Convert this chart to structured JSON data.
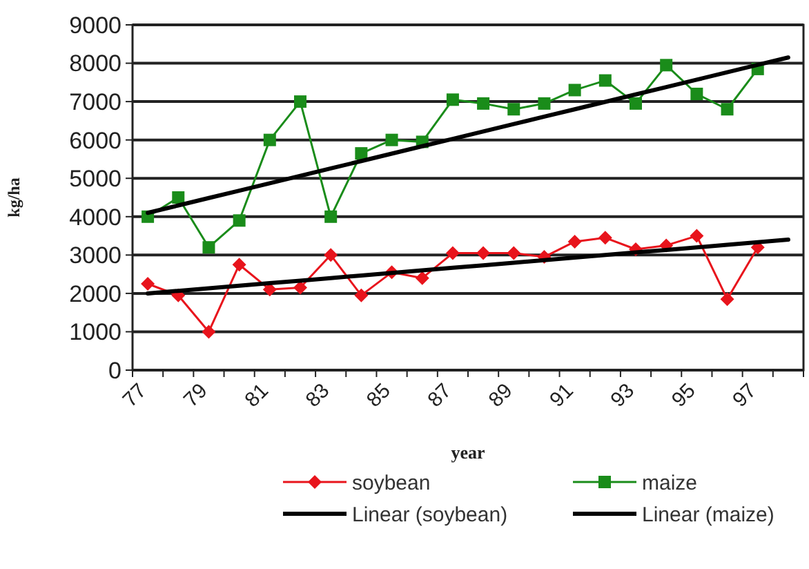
{
  "chart_data": {
    "type": "line",
    "xlabel": "year",
    "ylabel": "kg/ha",
    "categories": [
      "77",
      null,
      "79",
      null,
      "81",
      null,
      "83",
      null,
      "85",
      null,
      "87",
      null,
      "89",
      null,
      "91",
      null,
      "93",
      null,
      "95",
      null,
      "97",
      null
    ],
    "series": [
      {
        "name": "soybean",
        "color": "#e8141c",
        "marker": "diamond",
        "values": [
          2250,
          1950,
          1000,
          2750,
          2100,
          2150,
          3000,
          1950,
          2550,
          2400,
          3050,
          3050,
          3050,
          2950,
          3350,
          3450,
          3150,
          3250,
          3500,
          1850,
          3200,
          null
        ]
      },
      {
        "name": "maize",
        "color": "#1a8c1a",
        "marker": "square",
        "values": [
          4000,
          4500,
          3200,
          3900,
          6000,
          7000,
          4000,
          5650,
          6000,
          5950,
          7050,
          6950,
          6800,
          6950,
          7300,
          7550,
          6950,
          7950,
          7200,
          6800,
          7850,
          null
        ]
      },
      {
        "name": "Linear (soybean)",
        "color": "#000000",
        "marker": "none",
        "values": [
          2000,
          2067,
          2133,
          2200,
          2267,
          2333,
          2400,
          2467,
          2533,
          2600,
          2667,
          2733,
          2800,
          2867,
          2933,
          3000,
          3067,
          3133,
          3200,
          3267,
          3333,
          3400
        ]
      },
      {
        "name": "Linear (maize)",
        "color": "#000000",
        "marker": "none",
        "values": [
          4100,
          4293,
          4486,
          4679,
          4871,
          5064,
          5257,
          5450,
          5643,
          5836,
          6029,
          6221,
          6414,
          6607,
          6800,
          6993,
          7186,
          7379,
          7571,
          7764,
          7957,
          8150
        ]
      }
    ],
    "ylim": [
      0,
      9000
    ],
    "yticks": [
      0,
      1000,
      2000,
      3000,
      4000,
      5000,
      6000,
      7000,
      8000,
      9000
    ],
    "grid": "y",
    "legend": "bottom",
    "line_style": "solid"
  }
}
